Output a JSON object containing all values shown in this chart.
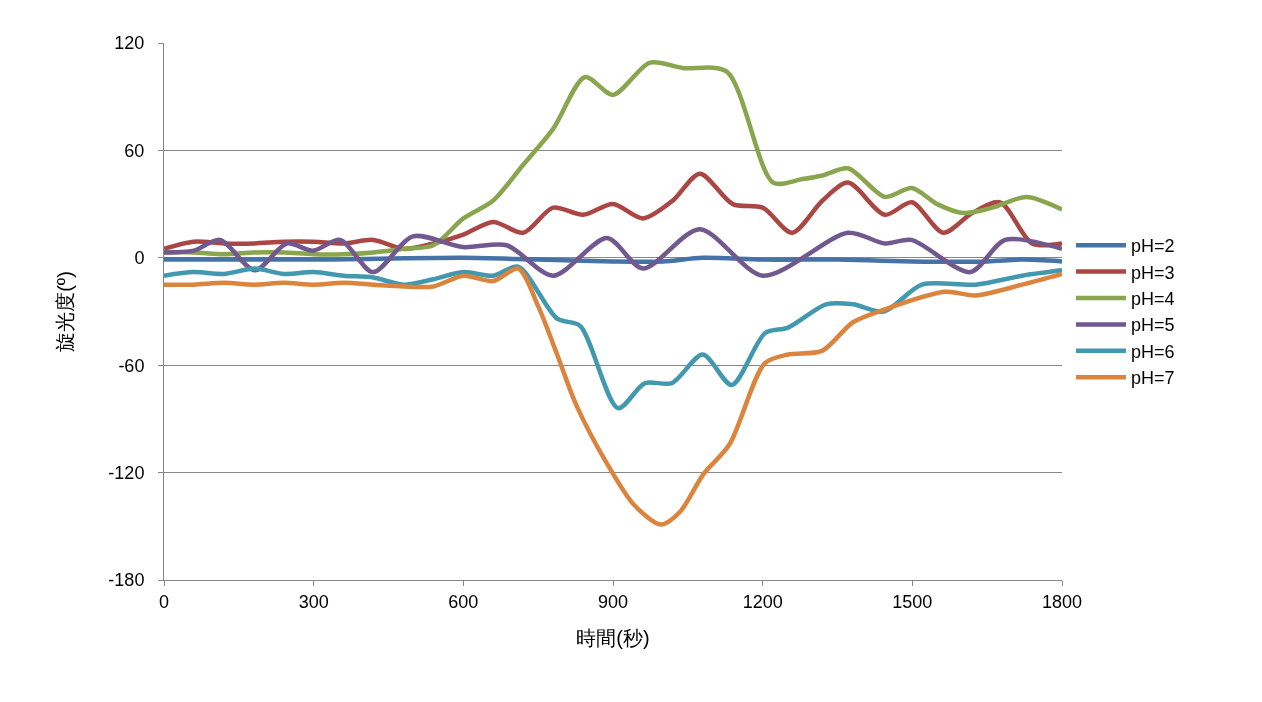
{
  "chart_data": {
    "type": "line",
    "xlabel": "時間(秒)",
    "ylabel": "旋光度(º)",
    "xlim": [
      0,
      1800
    ],
    "xticks": [
      0,
      300,
      600,
      900,
      1200,
      1500,
      1800
    ],
    "ylim": [
      -180,
      120
    ],
    "yticks": [
      -180,
      -120,
      -60,
      0,
      60,
      120
    ],
    "grid": "y",
    "legend": "right",
    "marker": "none",
    "line_style": "solid",
    "series": [
      {
        "name": "pH=2",
        "color": "#4572a7",
        "x": [
          0,
          300,
          600,
          750,
          900,
          1000,
          1080,
          1200,
          1350,
          1500,
          1650,
          1720,
          1800
        ],
        "values": [
          -1,
          -1,
          0,
          -1,
          -2,
          -2,
          0,
          -1,
          -1,
          -2,
          -2,
          -1,
          -2
        ]
      },
      {
        "name": "pH=3",
        "color": "#aa4643",
        "x": [
          0,
          60,
          120,
          180,
          240,
          300,
          360,
          420,
          480,
          540,
          600,
          660,
          720,
          780,
          840,
          900,
          960,
          1020,
          1074,
          1140,
          1200,
          1259,
          1320,
          1371,
          1445,
          1499,
          1562,
          1620,
          1676,
          1740,
          1800
        ],
        "values": [
          5,
          9,
          8,
          8,
          9,
          9,
          8,
          10,
          5,
          8,
          13,
          20,
          14,
          28,
          24,
          30,
          22,
          32,
          47,
          30,
          28,
          14,
          32,
          42,
          24,
          31,
          14,
          25,
          31,
          8,
          8
        ]
      },
      {
        "name": "pH=4",
        "color": "#89a54e",
        "x": [
          0,
          60,
          120,
          180,
          240,
          300,
          360,
          420,
          480,
          540,
          600,
          660,
          720,
          780,
          844,
          900,
          974,
          1040,
          1128,
          1221,
          1280,
          1320,
          1371,
          1445,
          1499,
          1550,
          1602,
          1660,
          1729,
          1800
        ],
        "values": [
          3,
          3,
          2,
          3,
          3,
          2,
          2,
          3,
          5,
          7,
          22,
          32,
          52,
          72,
          101,
          91,
          109,
          106,
          104,
          42,
          44,
          46,
          50,
          34,
          39,
          30,
          25,
          28,
          34,
          27
        ]
      },
      {
        "name": "pH=5",
        "color": "#71588f",
        "x": [
          0,
          60,
          112,
          182,
          246,
          299,
          353,
          419,
          499,
          599,
          687,
          780,
          888,
          960,
          1074,
          1201,
          1371,
          1445,
          1498,
          1616,
          1686,
          1800
        ],
        "values": [
          3,
          4,
          10,
          -7,
          8,
          4,
          10,
          -8,
          12,
          6,
          7,
          -10,
          11,
          -6,
          16,
          -10,
          14,
          8,
          10,
          -8,
          10,
          5
        ]
      },
      {
        "name": "pH=6",
        "color": "#4198af",
        "x": [
          0,
          60,
          120,
          182,
          240,
          300,
          360,
          420,
          479,
          540,
          600,
          660,
          710,
          788,
          834,
          910,
          964,
          1018,
          1080,
          1138,
          1205,
          1251,
          1327,
          1381,
          1443,
          1519,
          1627,
          1720,
          1800
        ],
        "values": [
          -10,
          -8,
          -9,
          -6,
          -9,
          -8,
          -10,
          -11,
          -15,
          -12,
          -8,
          -10,
          -5,
          -34,
          -38,
          -84,
          -70,
          -70,
          -54,
          -71,
          -42,
          -39,
          -26,
          -26,
          -30,
          -15,
          -15,
          -10,
          -7
        ]
      },
      {
        "name": "pH=7",
        "color": "#db843d",
        "x": [
          0,
          60,
          120,
          180,
          240,
          300,
          360,
          420,
          480,
          540,
          600,
          660,
          710,
          750,
          788,
          826,
          888,
          942,
          996,
          1034,
          1081,
          1134,
          1204,
          1251,
          1319,
          1381,
          1443,
          1565,
          1627,
          1720,
          1800
        ],
        "values": [
          -15,
          -15,
          -14,
          -15,
          -14,
          -15,
          -14,
          -15,
          -16,
          -16,
          -10,
          -13,
          -6,
          -27,
          -54,
          -82,
          -115,
          -138,
          -149,
          -142,
          -121,
          -104,
          -59,
          -54,
          -52,
          -36,
          -29,
          -19,
          -21,
          -15,
          -9
        ]
      }
    ]
  }
}
